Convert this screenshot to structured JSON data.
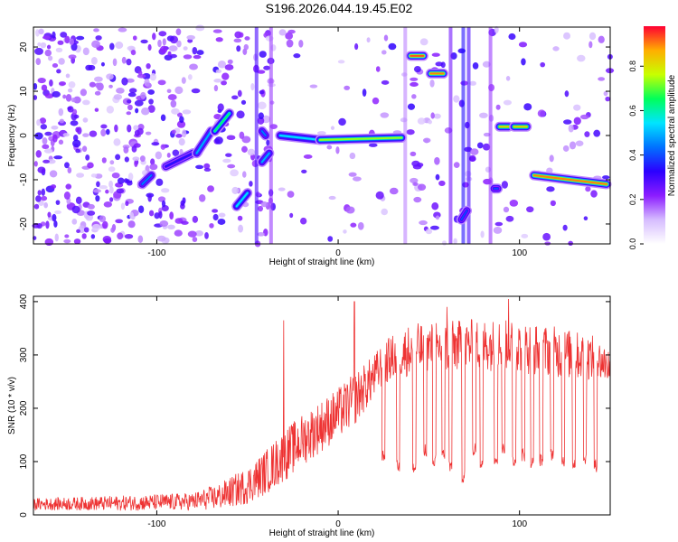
{
  "page": {
    "title": "S196.2026.044.19.45.E02"
  },
  "chart_data": [
    {
      "type": "heatmap",
      "title": "S196.2026.044.19.45.E02",
      "xlabel": "Height of straight line (km)",
      "ylabel": "Frequency (Hz)",
      "xlim": [
        -168,
        150
      ],
      "ylim": [
        -24.5,
        24.5
      ],
      "xticks": [
        -100,
        0,
        100
      ],
      "yticks": [
        -20,
        -10,
        0,
        10,
        20
      ],
      "colorbar": {
        "label": "Normalized spectral amplitude",
        "range": [
          0,
          0.98
        ],
        "ticks": [
          "0.0",
          "0.2",
          "0.4",
          "0.6",
          "0.8"
        ],
        "colors": [
          "#ffffff",
          "#d6bcff",
          "#8b1cff",
          "#2b00ff",
          "#0072ff",
          "#00e5ff",
          "#00ff5a",
          "#c8ff00",
          "#ffae00",
          "#ff0033"
        ]
      },
      "tracks": [
        {
          "x": [
            -108,
            -103
          ],
          "y": [
            -11,
            -9
          ],
          "amp": 0.45
        },
        {
          "x": [
            -95,
            -80
          ],
          "y": [
            -7,
            -4
          ],
          "amp": 0.35
        },
        {
          "x": [
            -78,
            -70
          ],
          "y": [
            -4,
            1
          ],
          "amp": 0.5
        },
        {
          "x": [
            -68,
            -60
          ],
          "y": [
            1,
            5
          ],
          "amp": 0.65
        },
        {
          "x": [
            -56,
            -50
          ],
          "y": [
            -16,
            -13
          ],
          "amp": 0.55
        },
        {
          "x": [
            -42,
            -38
          ],
          "y": [
            -6,
            -4
          ],
          "amp": 0.5
        },
        {
          "x": [
            -42,
            -40
          ],
          "y": [
            1,
            0
          ],
          "amp": 0.45
        },
        {
          "x": [
            -32,
            -10
          ],
          "y": [
            0,
            -1
          ],
          "amp": 0.55
        },
        {
          "x": [
            -10,
            35
          ],
          "y": [
            -1,
            -0.5
          ],
          "amp": 0.75
        },
        {
          "x": [
            40,
            47
          ],
          "y": [
            18,
            18
          ],
          "amp": 0.95
        },
        {
          "x": [
            51,
            58
          ],
          "y": [
            14,
            14
          ],
          "amp": 0.92
        },
        {
          "x": [
            68,
            71
          ],
          "y": [
            -19,
            -17
          ],
          "amp": 0.4
        },
        {
          "x": [
            86,
            88
          ],
          "y": [
            -12,
            -12
          ],
          "amp": 0.4
        },
        {
          "x": [
            89,
            94
          ],
          "y": [
            2,
            2
          ],
          "amp": 0.85
        },
        {
          "x": [
            97,
            104
          ],
          "y": [
            2,
            2
          ],
          "amp": 0.85
        },
        {
          "x": [
            108,
            148
          ],
          "y": [
            -9,
            -11
          ],
          "amp": 0.92
        }
      ]
    },
    {
      "type": "line",
      "xlabel": "Height of straight line (km)",
      "ylabel": "SNR (10 * v/v)",
      "xlim": [
        -168,
        150
      ],
      "ylim": [
        0,
        410
      ],
      "xticks": [
        -100,
        0,
        100
      ],
      "yticks": [
        0,
        100,
        200,
        300,
        400
      ],
      "color": "#ee3333",
      "series": [
        {
          "name": "SNR",
          "envelope": {
            "x": [
              -168,
              -120,
              -80,
              -65,
              -50,
              -40,
              -30,
              -20,
              -10,
              0,
              10,
              20,
              25,
              30,
              40,
              60,
              80,
              100,
              120,
              140,
              150
            ],
            "base": [
              20,
              22,
              25,
              35,
              55,
              80,
              110,
              140,
              165,
              190,
              220,
              260,
              285,
              295,
              310,
              315,
              320,
              315,
              305,
              295,
              280
            ],
            "noise": [
              8,
              10,
              12,
              18,
              25,
              30,
              35,
              35,
              35,
              35,
              35,
              30,
              30,
              30,
              35,
              35,
              35,
              35,
              35,
              30,
              25
            ]
          },
          "spikes": [
            {
              "x": -30,
              "y": 365
            },
            {
              "x": 9,
              "y": 400
            },
            {
              "x": 60,
              "y": 390
            },
            {
              "x": 94,
              "y": 405
            }
          ],
          "dips": [
            {
              "x": 25,
              "y": 95
            },
            {
              "x": 33,
              "y": 80
            },
            {
              "x": 42,
              "y": 75
            },
            {
              "x": 48,
              "y": 110
            },
            {
              "x": 53,
              "y": 90
            },
            {
              "x": 58,
              "y": 100
            },
            {
              "x": 62,
              "y": 80
            },
            {
              "x": 69,
              "y": 60
            },
            {
              "x": 75,
              "y": 110
            },
            {
              "x": 79,
              "y": 85
            },
            {
              "x": 87,
              "y": 95
            },
            {
              "x": 91,
              "y": 110
            },
            {
              "x": 97,
              "y": 90
            },
            {
              "x": 102,
              "y": 100
            },
            {
              "x": 107,
              "y": 85
            },
            {
              "x": 112,
              "y": 90
            },
            {
              "x": 118,
              "y": 100
            },
            {
              "x": 124,
              "y": 90
            },
            {
              "x": 130,
              "y": 85
            },
            {
              "x": 136,
              "y": 95
            },
            {
              "x": 142,
              "y": 80
            }
          ]
        }
      ]
    }
  ]
}
